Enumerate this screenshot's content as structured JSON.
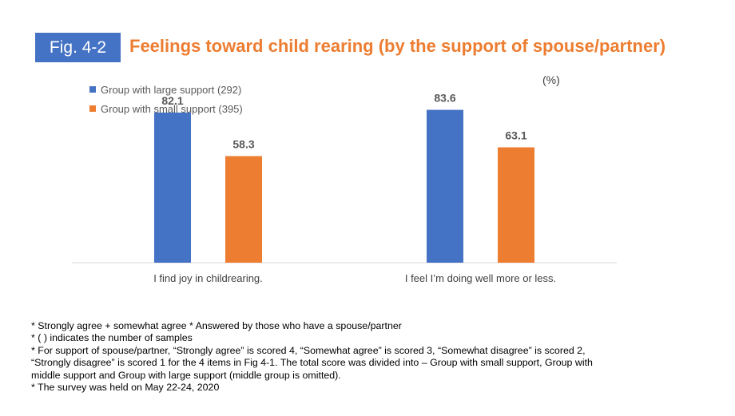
{
  "figure": {
    "label": "Fig. 4-2",
    "title": "Feelings toward child rearing (by the support of spouse/partner)",
    "unit": "(%)"
  },
  "colors": {
    "series1": "#4472c4",
    "series2": "#ed7d31",
    "axis": "#d9d9d9",
    "value_label": "#595959"
  },
  "chart_data": {
    "type": "bar",
    "categories": [
      "I find joy in childrearing.",
      "I feel I’m doing well more or less."
    ],
    "series": [
      {
        "name": "Group with large support (292)",
        "values": [
          82.1,
          83.6
        ]
      },
      {
        "name": "Group with small support (395)",
        "values": [
          58.3,
          63.1
        ]
      }
    ],
    "ylim": [
      0,
      100
    ],
    "legend": "top-left",
    "grid": false
  },
  "notes": [
    "* Strongly agree + somewhat agree  * Answered by those who have a spouse/partner",
    "* (   ) indicates the number of samples",
    "* For support of spouse/partner, “Strongly agree” is scored 4, “Somewhat agree” is scored 3, “Somewhat disagree” is scored 2,",
    "“Strongly disagree” is scored 1 for the 4 items in Fig 4-1. The total score was divided into – Group with small support, Group with",
    "middle support and Group with large support (middle group is omitted).",
    "* The survey was held on May 22-24, 2020"
  ]
}
